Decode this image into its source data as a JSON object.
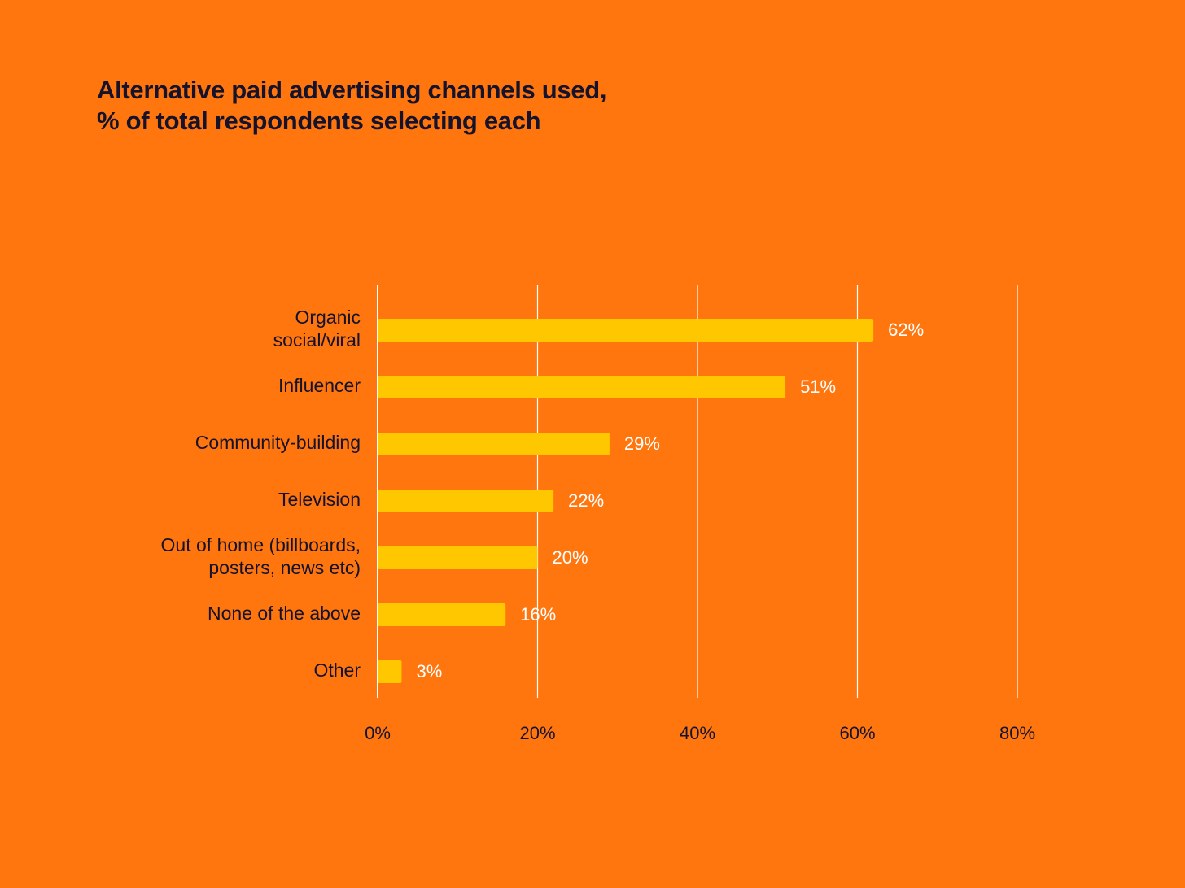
{
  "chart_data": {
    "type": "bar",
    "orientation": "horizontal",
    "title": "Alternative paid advertising channels used,\n% of total respondents selecting each",
    "title_lines": [
      "Alternative paid advertising channels used,",
      "% of total respondents selecting each"
    ],
    "categories": [
      [
        "Organic",
        "social/viral"
      ],
      [
        "Influencer"
      ],
      [
        "Community-building"
      ],
      [
        "Television"
      ],
      [
        "Out of home (billboards,",
        "posters, news etc)"
      ],
      [
        "None of the above"
      ],
      [
        "Other"
      ]
    ],
    "values": [
      62,
      51,
      29,
      22,
      20,
      16,
      3
    ],
    "value_labels": [
      "62%",
      "51%",
      "29%",
      "22%",
      "20%",
      "16%",
      "3%"
    ],
    "xlim": [
      0,
      80
    ],
    "xticks": [
      0,
      20,
      40,
      60,
      80
    ],
    "xtick_labels": [
      "0%",
      "20%",
      "40%",
      "60%",
      "80%"
    ],
    "xlabel": "",
    "ylabel": "",
    "grid": "vertical",
    "legend": "none",
    "colors": {
      "background": "#FF760E",
      "bar": "#FFC700",
      "gridline": "#FFFFFF",
      "text_dark": "#15122B",
      "value_text": "#FFFFFF"
    }
  }
}
